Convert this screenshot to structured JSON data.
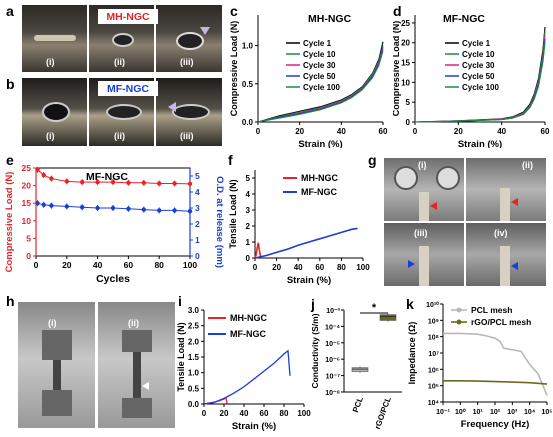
{
  "panel_labels": {
    "a": "a",
    "b": "b",
    "c": "c",
    "d": "d",
    "e": "e",
    "f": "f",
    "g": "g",
    "h": "h",
    "i": "i",
    "j": "j",
    "k": "k"
  },
  "photos": {
    "a": {
      "title": "MH-NGC",
      "title_color": "#e8232a",
      "captions": [
        "(i)",
        "(ii)",
        "(iii)"
      ]
    },
    "b": {
      "title": "MF-NGC",
      "title_color": "#1a3fd6",
      "captions": [
        "(i)",
        "(ii)",
        "(iii)"
      ]
    },
    "g": {
      "captions": [
        "(i)",
        "(ii)",
        "(iii)",
        "(iv)"
      ]
    },
    "h": {
      "captions": [
        "(i)",
        "(ii)"
      ]
    }
  },
  "colors": {
    "red": "#e8232a",
    "blue": "#1a3fd6",
    "olive": "#6b6a1c",
    "gray": "#b8b8b8",
    "green": "#1d8a3a",
    "magenta": "#e0237a",
    "black": "#000000"
  },
  "chart_data": [
    {
      "id": "c",
      "type": "line",
      "title": "MH-NGC",
      "xlabel": "Strain (%)",
      "ylabel": "Compressive Load (N)",
      "xlim": [
        0,
        60
      ],
      "ylim": [
        0,
        1.4
      ],
      "xticks": [
        0,
        20,
        40,
        60
      ],
      "yticks": [
        0.0,
        0.5,
        1.0
      ],
      "legend_position": "left",
      "series": [
        {
          "name": "Cycle 1",
          "color": "#000000",
          "x": [
            0,
            10,
            20,
            30,
            40,
            45,
            50,
            55,
            58,
            60
          ],
          "y": [
            0,
            0.08,
            0.14,
            0.2,
            0.29,
            0.36,
            0.46,
            0.64,
            0.82,
            1.05
          ]
        },
        {
          "name": "Cycle 10",
          "color": "#1d8a3a",
          "x": [
            0,
            10,
            20,
            30,
            40,
            45,
            50,
            55,
            58,
            60
          ],
          "y": [
            0,
            0.07,
            0.13,
            0.19,
            0.28,
            0.35,
            0.45,
            0.63,
            0.8,
            1.0
          ]
        },
        {
          "name": "Cycle 30",
          "color": "#e0237a",
          "x": [
            0,
            10,
            20,
            30,
            40,
            45,
            50,
            55,
            58,
            60
          ],
          "y": [
            0,
            0.06,
            0.12,
            0.18,
            0.27,
            0.34,
            0.44,
            0.61,
            0.78,
            0.98
          ]
        },
        {
          "name": "Cycle 50",
          "color": "#1a3fd6",
          "x": [
            0,
            10,
            20,
            30,
            40,
            45,
            50,
            55,
            58,
            60
          ],
          "y": [
            0,
            0.06,
            0.11,
            0.17,
            0.26,
            0.33,
            0.43,
            0.6,
            0.76,
            0.96
          ]
        },
        {
          "name": "Cycle 100",
          "color": "#1d8a3a",
          "x": [
            0,
            10,
            20,
            30,
            40,
            45,
            50,
            55,
            58,
            60
          ],
          "y": [
            0,
            0.05,
            0.1,
            0.16,
            0.25,
            0.32,
            0.42,
            0.58,
            0.74,
            0.93
          ]
        }
      ]
    },
    {
      "id": "d",
      "type": "line",
      "title": "MF-NGC",
      "xlabel": "Strain (%)",
      "ylabel": "Compressive Load (N)",
      "xlim": [
        0,
        60
      ],
      "ylim": [
        0,
        27
      ],
      "xticks": [
        0,
        20,
        40,
        60
      ],
      "yticks": [
        0,
        5,
        10,
        15,
        20,
        25
      ],
      "legend_position": "left",
      "series": [
        {
          "name": "Cycle 1",
          "color": "#000000",
          "x": [
            0,
            20,
            40,
            45,
            50,
            53,
            55,
            57,
            59,
            60
          ],
          "y": [
            0,
            0.3,
            0.8,
            1.3,
            2.5,
            4.5,
            7,
            11,
            18,
            24
          ]
        },
        {
          "name": "Cycle 10",
          "color": "#1d8a3a",
          "x": [
            0,
            20,
            40,
            45,
            50,
            53,
            55,
            57,
            59,
            60
          ],
          "y": [
            0,
            0.3,
            0.7,
            1.2,
            2.3,
            4.2,
            6.6,
            10.5,
            17,
            23
          ]
        },
        {
          "name": "Cycle 30",
          "color": "#e0237a",
          "x": [
            0,
            20,
            40,
            45,
            50,
            53,
            55,
            57,
            59,
            60
          ],
          "y": [
            0,
            0.2,
            0.7,
            1.1,
            2.2,
            4.0,
            6.3,
            10,
            16,
            22
          ]
        },
        {
          "name": "Cycle 50",
          "color": "#1a3fd6",
          "x": [
            0,
            20,
            40,
            45,
            50,
            53,
            55,
            57,
            59,
            60
          ],
          "y": [
            0,
            0.2,
            0.6,
            1.0,
            2.0,
            3.8,
            6,
            9.5,
            15.5,
            21
          ]
        },
        {
          "name": "Cycle 100",
          "color": "#1d8a3a",
          "x": [
            0,
            20,
            40,
            45,
            50,
            53,
            55,
            57,
            59,
            60
          ],
          "y": [
            0,
            0.2,
            0.6,
            1.0,
            1.9,
            3.6,
            5.7,
            9,
            15,
            20
          ]
        }
      ]
    },
    {
      "id": "e",
      "type": "line",
      "title": "MF-NGC",
      "xlabel": "Cycles",
      "ylabel": "Compressive Load (N)",
      "y2label": "O.D. at release (mm)",
      "xlim": [
        0,
        100
      ],
      "ylim": [
        0,
        25
      ],
      "y2lim": [
        0,
        5.5
      ],
      "xticks": [
        0,
        20,
        40,
        60,
        80,
        100
      ],
      "yticks": [
        0,
        5,
        10,
        15,
        20,
        25
      ],
      "y2ticks": [
        0,
        1,
        2,
        3,
        4,
        5
      ],
      "series": [
        {
          "name": "Compressive Load",
          "axis": "left",
          "color": "#e8232a",
          "x": [
            1,
            5,
            10,
            20,
            30,
            40,
            50,
            60,
            70,
            80,
            90,
            100
          ],
          "y": [
            24.5,
            23,
            22,
            21.2,
            21,
            21,
            21,
            20.8,
            20.8,
            20.6,
            20.6,
            20.5
          ]
        },
        {
          "name": "O.D. at release",
          "axis": "right",
          "color": "#1a3fd6",
          "x": [
            1,
            5,
            10,
            20,
            30,
            40,
            50,
            60,
            70,
            80,
            90,
            100
          ],
          "y": [
            3.3,
            3.2,
            3.15,
            3.1,
            3.05,
            3.0,
            3.0,
            2.95,
            2.9,
            2.85,
            2.85,
            2.8
          ]
        }
      ]
    },
    {
      "id": "f",
      "type": "line",
      "xlabel": "Strain (%)",
      "ylabel": "Tensile Load (N)",
      "xlim": [
        0,
        100
      ],
      "ylim": [
        0,
        5.5
      ],
      "xticks": [
        0,
        20,
        40,
        60,
        80,
        100
      ],
      "yticks": [
        0,
        1,
        2,
        3,
        4,
        5
      ],
      "legend_position": "top-left",
      "series": [
        {
          "name": "MH-NGC",
          "color": "#e8232a",
          "x": [
            0,
            1,
            2,
            3,
            4,
            5,
            6,
            7
          ],
          "y": [
            0,
            0.2,
            0.6,
            0.95,
            0.5,
            0.15,
            0.05,
            0
          ]
        },
        {
          "name": "MF-NGC",
          "color": "#1a3fd6",
          "x": [
            0,
            10,
            20,
            30,
            40,
            50,
            60,
            70,
            80,
            90,
            95
          ],
          "y": [
            0,
            0.15,
            0.35,
            0.55,
            0.8,
            1.0,
            1.2,
            1.4,
            1.6,
            1.8,
            1.85
          ]
        }
      ]
    },
    {
      "id": "i",
      "type": "line",
      "xlabel": "Strain (%)",
      "ylabel": "Tensile Load (N)",
      "xlim": [
        0,
        100
      ],
      "ylim": [
        0,
        3
      ],
      "xticks": [
        0,
        20,
        40,
        60,
        80,
        100
      ],
      "yticks": [
        0.0,
        0.5,
        1.0,
        1.5,
        2.0,
        2.5,
        3.0
      ],
      "legend_position": "top-left",
      "series": [
        {
          "name": "MH-NGC",
          "color": "#e8232a",
          "x": [
            0,
            5,
            10,
            15,
            20,
            22,
            23
          ],
          "y": [
            0,
            0.03,
            0.06,
            0.1,
            0.16,
            0.2,
            0.02
          ]
        },
        {
          "name": "MF-NGC",
          "color": "#1a3fd6",
          "x": [
            0,
            10,
            20,
            30,
            40,
            50,
            60,
            70,
            80,
            84,
            86
          ],
          "y": [
            0,
            0.05,
            0.18,
            0.35,
            0.55,
            0.8,
            1.05,
            1.3,
            1.6,
            1.7,
            0.9
          ]
        }
      ]
    },
    {
      "id": "j",
      "type": "scatter",
      "xlabel": "",
      "ylabel": "Conductivity (S/m)",
      "categories": [
        "PCL",
        "rGO/PCL"
      ],
      "ylog": true,
      "ylim_exp": [
        -8,
        -3
      ],
      "yticks": [
        "10⁻⁸",
        "10⁻⁷",
        "10⁻⁶",
        "10⁻⁵",
        "10⁻⁴",
        "10⁻³"
      ],
      "values": [
        {
          "category": "PCL",
          "mean": 2.5e-07,
          "min": 1.5e-07,
          "max": 3.5e-07
        },
        {
          "category": "rGO/PCL",
          "mean": 0.0004,
          "min": 0.0002,
          "max": 0.0006
        }
      ],
      "annotation": "*"
    },
    {
      "id": "k",
      "type": "line",
      "xlabel": "Frequency (Hz)",
      "ylabel": "Impedance (Ω)",
      "xlog": true,
      "ylog": true,
      "xticks": [
        "10⁻¹",
        "10⁰",
        "10¹",
        "10²",
        "10³",
        "10⁴",
        "10⁵"
      ],
      "yticks": [
        "10⁴",
        "10⁵",
        "10⁶",
        "10⁷",
        "10⁸",
        "10⁹",
        "10¹⁰"
      ],
      "xlim_exp": [
        -1,
        5
      ],
      "ylim_exp": [
        4,
        10
      ],
      "legend_position": "top-left",
      "series": [
        {
          "name": "PCL mesh",
          "color": "#b8b8b8",
          "logx": [
            -1,
            0,
            1,
            1.5,
            2,
            2.3,
            2.5,
            3,
            3.5,
            4,
            4.5,
            5
          ],
          "logy": [
            8.2,
            8.2,
            8.15,
            8.05,
            7.9,
            7.7,
            7.3,
            7.2,
            7.1,
            6.3,
            5.7,
            4.4
          ]
        },
        {
          "name": "rGO/PCL mesh",
          "color": "#6b6a1c",
          "logx": [
            -1,
            0,
            1,
            2,
            3,
            4,
            5
          ],
          "logy": [
            5.3,
            5.3,
            5.28,
            5.25,
            5.22,
            5.18,
            5.1
          ]
        }
      ]
    }
  ]
}
